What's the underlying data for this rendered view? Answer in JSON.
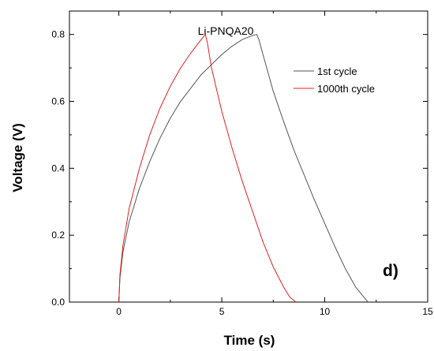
{
  "chart_data": {
    "type": "line",
    "title": "Li-PNQA20",
    "xlabel": "Time (s)",
    "ylabel": "Voltage (V)",
    "xlim": [
      -2.4,
      15
    ],
    "ylim": [
      0,
      0.87
    ],
    "x_ticks": [
      0,
      5,
      10,
      15
    ],
    "x_tick_labels": [
      "0",
      "5",
      "10",
      "15"
    ],
    "y_ticks": [
      0.0,
      0.2,
      0.4,
      0.6,
      0.8
    ],
    "y_tick_labels": [
      "0.0",
      "0.2",
      "0.4",
      "0.6",
      "0.8"
    ],
    "grid": false,
    "legend_position": "top-right",
    "annotation": "d)",
    "series": [
      {
        "name": "1st cycle",
        "color": "#555555",
        "x": [
          0.0,
          0.05,
          0.2,
          0.5,
          1.0,
          1.5,
          2.0,
          2.5,
          3.0,
          3.5,
          4.0,
          4.5,
          5.0,
          5.5,
          6.0,
          6.5,
          6.7,
          6.8,
          7.0,
          7.5,
          8.0,
          8.5,
          9.0,
          9.5,
          10.0,
          10.5,
          11.0,
          11.5,
          12.1
        ],
        "y": [
          0.0,
          0.07,
          0.15,
          0.24,
          0.34,
          0.42,
          0.49,
          0.55,
          0.6,
          0.64,
          0.68,
          0.71,
          0.74,
          0.765,
          0.785,
          0.797,
          0.8,
          0.785,
          0.74,
          0.63,
          0.54,
          0.455,
          0.38,
          0.305,
          0.235,
          0.165,
          0.1,
          0.045,
          0.0
        ]
      },
      {
        "name": "1000th cycle",
        "color": "#e02020",
        "x": [
          0.0,
          0.05,
          0.2,
          0.5,
          1.0,
          1.5,
          2.0,
          2.5,
          3.0,
          3.5,
          4.0,
          4.2,
          4.3,
          4.5,
          5.0,
          5.5,
          6.0,
          6.5,
          7.0,
          7.5,
          8.0,
          8.3,
          8.6
        ],
        "y": [
          0.0,
          0.08,
          0.17,
          0.28,
          0.4,
          0.5,
          0.58,
          0.645,
          0.7,
          0.745,
          0.785,
          0.8,
          0.775,
          0.7,
          0.57,
          0.46,
          0.36,
          0.27,
          0.18,
          0.105,
          0.045,
          0.015,
          0.0
        ]
      }
    ]
  }
}
